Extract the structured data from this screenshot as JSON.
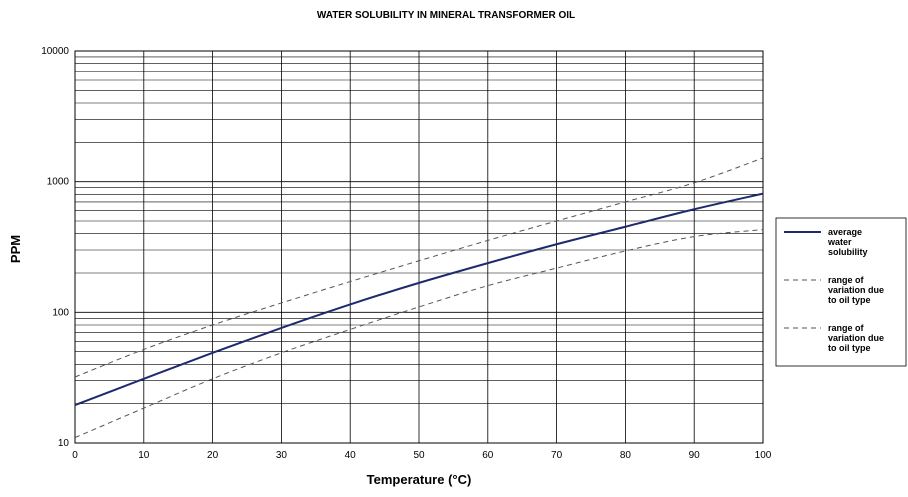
{
  "chart_data": {
    "type": "line",
    "title": "WATER SOLUBILITY IN MINERAL TRANSFORMER OIL",
    "xlabel": "Temperature (°C)",
    "ylabel": "PPM",
    "xlim": [
      0,
      100
    ],
    "ylim": [
      10,
      10000
    ],
    "yscale": "log",
    "grid": true,
    "legend_position": "right",
    "x_ticks": [
      "0",
      "10",
      "20",
      "30",
      "40",
      "50",
      "60",
      "70",
      "80",
      "90",
      "100"
    ],
    "y_ticks": [
      "10",
      "100",
      "1000",
      "10000"
    ],
    "x": [
      0,
      10,
      20,
      30,
      40,
      50,
      60,
      70,
      80,
      90,
      100
    ],
    "series": [
      {
        "name": "average water solubility",
        "style": "solid",
        "color": "#1f2a6e",
        "values": [
          19.5,
          31,
          49,
          76,
          115,
          168,
          238,
          332,
          452,
          615,
          810
        ]
      },
      {
        "name": "range of variation due to oil type",
        "style": "dashed",
        "color": "#555555",
        "values": [
          32,
          52,
          80,
          118,
          172,
          248,
          355,
          500,
          700,
          980,
          1520
        ]
      },
      {
        "name": "range of variation due to oil type",
        "style": "dashed",
        "color": "#555555",
        "values": [
          11,
          18.5,
          31,
          49,
          74,
          110,
          160,
          218,
          295,
          380,
          430
        ]
      }
    ],
    "legend": [
      {
        "lines": [
          "average",
          "water",
          "solubility"
        ]
      },
      {
        "lines": [
          "range of",
          "variation due",
          "to oil type"
        ]
      },
      {
        "lines": [
          "range of",
          "variation due",
          "to oil type"
        ]
      }
    ]
  }
}
